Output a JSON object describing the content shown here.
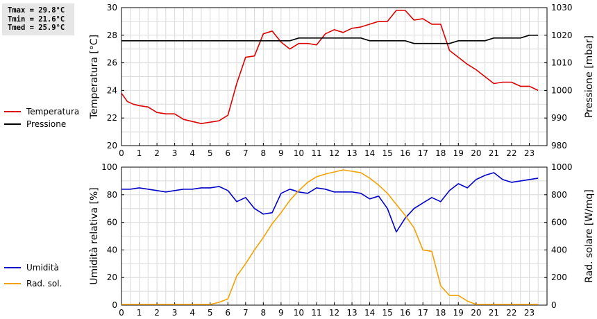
{
  "stats": {
    "tmax": "Tmax = 29.8°C",
    "tmin": "Tmin = 21.6°C",
    "tmed": "Tmed = 25.9°C"
  },
  "colors": {
    "temperature": "#dd0000",
    "pressure": "#000000",
    "humidity": "#0000cc",
    "radiation": "#f5a000",
    "grid": "#d9d9d9"
  },
  "chart_data": [
    {
      "type": "line",
      "xlim": [
        0,
        24
      ],
      "x_ticks": [
        "0",
        "1",
        "2",
        "3",
        "4",
        "5",
        "6",
        "7",
        "8",
        "9",
        "10",
        "11",
        "12",
        "13",
        "14",
        "15",
        "16",
        "17",
        "18",
        "19",
        "20",
        "21",
        "22",
        "23"
      ],
      "grid": true,
      "legend": "left",
      "left_axis": {
        "label": "Temperatura [°C]",
        "ylim": [
          20,
          30
        ],
        "ticks": [
          "20",
          "22",
          "24",
          "26",
          "28",
          "30"
        ]
      },
      "right_axis": {
        "label": "Pressione [mbar]",
        "ylim": [
          980,
          1030
        ],
        "ticks": [
          "980",
          "990",
          "1000",
          "1010",
          "1020",
          "1030"
        ]
      },
      "series": [
        {
          "name": "Temperatura",
          "axis": "left",
          "color": "#dd0000",
          "points": [
            [
              0,
              23.8
            ],
            [
              0.33,
              23.2
            ],
            [
              0.67,
              23.0
            ],
            [
              1,
              22.9
            ],
            [
              1.5,
              22.8
            ],
            [
              2,
              22.4
            ],
            [
              2.5,
              22.3
            ],
            [
              3,
              22.3
            ],
            [
              3.5,
              21.9
            ],
            [
              4,
              21.75
            ],
            [
              4.5,
              21.6
            ],
            [
              5,
              21.7
            ],
            [
              5.5,
              21.8
            ],
            [
              6,
              22.2
            ],
            [
              6.5,
              24.5
            ],
            [
              7,
              26.4
            ],
            [
              7.5,
              26.5
            ],
            [
              8,
              28.1
            ],
            [
              8.5,
              28.3
            ],
            [
              9,
              27.5
            ],
            [
              9.5,
              27.0
            ],
            [
              10,
              27.4
            ],
            [
              10.5,
              27.4
            ],
            [
              11,
              27.3
            ],
            [
              11.5,
              28.1
            ],
            [
              12,
              28.4
            ],
            [
              12.5,
              28.2
            ],
            [
              13,
              28.5
            ],
            [
              13.5,
              28.6
            ],
            [
              14,
              28.8
            ],
            [
              14.5,
              29.0
            ],
            [
              15,
              29.0
            ],
            [
              15.5,
              29.8
            ],
            [
              16,
              29.8
            ],
            [
              16.5,
              29.1
            ],
            [
              17,
              29.2
            ],
            [
              17.5,
              28.8
            ],
            [
              18,
              28.8
            ],
            [
              18.5,
              26.9
            ],
            [
              19,
              26.4
            ],
            [
              19.5,
              25.9
            ],
            [
              20,
              25.5
            ],
            [
              20.5,
              25.0
            ],
            [
              21,
              24.5
            ],
            [
              21.5,
              24.6
            ],
            [
              22,
              24.6
            ],
            [
              22.5,
              24.3
            ],
            [
              23,
              24.3
            ],
            [
              23.5,
              24.0
            ]
          ]
        },
        {
          "name": "Pressione",
          "axis": "right",
          "color": "#000000",
          "points": [
            [
              0,
              1018
            ],
            [
              1,
              1018
            ],
            [
              2,
              1018
            ],
            [
              3,
              1018
            ],
            [
              4,
              1018
            ],
            [
              5,
              1018
            ],
            [
              6,
              1018
            ],
            [
              7,
              1018
            ],
            [
              8,
              1018
            ],
            [
              9,
              1018
            ],
            [
              9.5,
              1018
            ],
            [
              10,
              1019
            ],
            [
              11,
              1019
            ],
            [
              12,
              1019
            ],
            [
              13,
              1019
            ],
            [
              13.5,
              1019
            ],
            [
              14,
              1018
            ],
            [
              15,
              1018
            ],
            [
              16,
              1018
            ],
            [
              16.5,
              1017
            ],
            [
              17,
              1017
            ],
            [
              18,
              1017
            ],
            [
              18.5,
              1017
            ],
            [
              19,
              1018
            ],
            [
              20,
              1018
            ],
            [
              20.5,
              1018
            ],
            [
              21,
              1019
            ],
            [
              22,
              1019
            ],
            [
              22.5,
              1019
            ],
            [
              23,
              1020
            ],
            [
              23.5,
              1020
            ]
          ]
        }
      ]
    },
    {
      "type": "line",
      "xlim": [
        0,
        24
      ],
      "x_ticks": [
        "0",
        "1",
        "2",
        "3",
        "4",
        "5",
        "6",
        "7",
        "8",
        "9",
        "10",
        "11",
        "12",
        "13",
        "14",
        "15",
        "16",
        "17",
        "18",
        "19",
        "20",
        "21",
        "22",
        "23"
      ],
      "grid": true,
      "legend": "left",
      "left_axis": {
        "label": "Umidità relativa [%]",
        "ylim": [
          0,
          100
        ],
        "ticks": [
          "0",
          "20",
          "40",
          "60",
          "80",
          "100"
        ]
      },
      "right_axis": {
        "label": "Rad. solare [W/mq]",
        "ylim": [
          0,
          1000
        ],
        "ticks": [
          "0",
          "200",
          "400",
          "600",
          "800",
          "1000"
        ]
      },
      "series": [
        {
          "name": "Umidità",
          "axis": "left",
          "color": "#0000cc",
          "points": [
            [
              0,
              84
            ],
            [
              0.5,
              84
            ],
            [
              1,
              85
            ],
            [
              1.5,
              84
            ],
            [
              2,
              83
            ],
            [
              2.5,
              82
            ],
            [
              3,
              83
            ],
            [
              3.5,
              84
            ],
            [
              4,
              84
            ],
            [
              4.5,
              85
            ],
            [
              5,
              85
            ],
            [
              5.5,
              86
            ],
            [
              6,
              83
            ],
            [
              6.5,
              75
            ],
            [
              7,
              78
            ],
            [
              7.5,
              70
            ],
            [
              8,
              66
            ],
            [
              8.5,
              67
            ],
            [
              9,
              81
            ],
            [
              9.5,
              84
            ],
            [
              10,
              82
            ],
            [
              10.5,
              81
            ],
            [
              11,
              85
            ],
            [
              11.5,
              84
            ],
            [
              12,
              82
            ],
            [
              12.5,
              82
            ],
            [
              13,
              82
            ],
            [
              13.5,
              81
            ],
            [
              14,
              77
            ],
            [
              14.5,
              79
            ],
            [
              15,
              70
            ],
            [
              15.5,
              53
            ],
            [
              16,
              63
            ],
            [
              16.5,
              70
            ],
            [
              17,
              74
            ],
            [
              17.5,
              78
            ],
            [
              18,
              75
            ],
            [
              18.5,
              83
            ],
            [
              19,
              88
            ],
            [
              19.5,
              85
            ],
            [
              20,
              91
            ],
            [
              20.5,
              94
            ],
            [
              21,
              96
            ],
            [
              21.5,
              91
            ],
            [
              22,
              89
            ],
            [
              22.5,
              90
            ],
            [
              23,
              91
            ],
            [
              23.5,
              92
            ]
          ]
        },
        {
          "name": "Rad. sol.",
          "axis": "right",
          "color": "#f5a000",
          "points": [
            [
              0,
              5
            ],
            [
              1,
              5
            ],
            [
              2,
              5
            ],
            [
              3,
              5
            ],
            [
              4,
              5
            ],
            [
              5,
              5
            ],
            [
              5.5,
              20
            ],
            [
              6,
              45
            ],
            [
              6.5,
              210
            ],
            [
              7,
              300
            ],
            [
              7.5,
              400
            ],
            [
              8,
              490
            ],
            [
              8.5,
              590
            ],
            [
              9,
              670
            ],
            [
              9.5,
              760
            ],
            [
              10,
              830
            ],
            [
              10.5,
              890
            ],
            [
              11,
              930
            ],
            [
              11.5,
              950
            ],
            [
              12,
              965
            ],
            [
              12.5,
              980
            ],
            [
              13,
              970
            ],
            [
              13.5,
              960
            ],
            [
              14,
              920
            ],
            [
              14.5,
              870
            ],
            [
              15,
              810
            ],
            [
              15.5,
              730
            ],
            [
              16,
              650
            ],
            [
              16.5,
              560
            ],
            [
              17,
              400
            ],
            [
              17.5,
              390
            ],
            [
              18,
              140
            ],
            [
              18.5,
              70
            ],
            [
              19,
              70
            ],
            [
              19.5,
              30
            ],
            [
              20,
              5
            ],
            [
              21,
              5
            ],
            [
              22,
              5
            ],
            [
              23,
              5
            ],
            [
              23.5,
              5
            ]
          ]
        }
      ]
    }
  ]
}
